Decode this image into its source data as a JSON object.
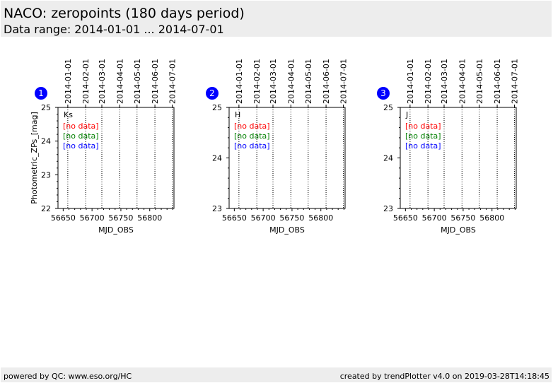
{
  "header": {
    "title": "NACO: zeropoints (180 days period)",
    "subtitle": "Data range: 2014-01-01 ... 2014-07-01"
  },
  "footer": {
    "left": "powered by QC: www.eso.org/HC",
    "right": "created by trendPlotter v4.0 on 2019-03-28T14:18:45"
  },
  "colors": {
    "marker": "#0000ff",
    "no_data_1": "#ff0000",
    "no_data_2": "#008000",
    "no_data_3": "#0000ff",
    "header_bg": "#ededed"
  },
  "chart_data": [
    {
      "type": "scatter",
      "index": "1",
      "band_label": "Ks",
      "no_data_labels": [
        "[no data]",
        "[no data]",
        "[no data]"
      ],
      "xlabel": "MJD_OBS",
      "ylabel": "Photometric_ZPs_[mag]",
      "xlim": [
        56641,
        56842
      ],
      "ylim": [
        22,
        25
      ],
      "x_ticks": [
        56650,
        56700,
        56750,
        56800
      ],
      "y_ticks": [
        22,
        23,
        24,
        25
      ],
      "top_date_ticks": [
        "2014-01-01",
        "2014-02-01",
        "2014-03-01",
        "2014-04-01",
        "2014-05-01",
        "2014-06-01",
        "2014-07-01"
      ],
      "date_mjd": [
        56658,
        56689,
        56717,
        56748,
        56778,
        56809,
        56839
      ],
      "series": []
    },
    {
      "type": "scatter",
      "index": "2",
      "band_label": "H",
      "no_data_labels": [
        "[no data]",
        "[no data]",
        "[no data]"
      ],
      "xlabel": "MJD_OBS",
      "ylabel": "",
      "xlim": [
        56641,
        56842
      ],
      "ylim": [
        23,
        25
      ],
      "x_ticks": [
        56650,
        56700,
        56750,
        56800
      ],
      "y_ticks": [
        23,
        24,
        25
      ],
      "top_date_ticks": [
        "2014-01-01",
        "2014-02-01",
        "2014-03-01",
        "2014-04-01",
        "2014-05-01",
        "2014-06-01",
        "2014-07-01"
      ],
      "date_mjd": [
        56658,
        56689,
        56717,
        56748,
        56778,
        56809,
        56839
      ],
      "series": []
    },
    {
      "type": "scatter",
      "index": "3",
      "band_label": "J",
      "no_data_labels": [
        "[no data]",
        "[no data]",
        "[no data]"
      ],
      "xlabel": "MJD_OBS",
      "ylabel": "",
      "xlim": [
        56641,
        56842
      ],
      "ylim": [
        23,
        25
      ],
      "x_ticks": [
        56650,
        56700,
        56750,
        56800
      ],
      "y_ticks": [
        23,
        24,
        25
      ],
      "top_date_ticks": [
        "2014-01-01",
        "2014-02-01",
        "2014-03-01",
        "2014-04-01",
        "2014-05-01",
        "2014-06-01",
        "2014-07-01"
      ],
      "date_mjd": [
        56658,
        56689,
        56717,
        56748,
        56778,
        56809,
        56839
      ],
      "series": []
    }
  ]
}
